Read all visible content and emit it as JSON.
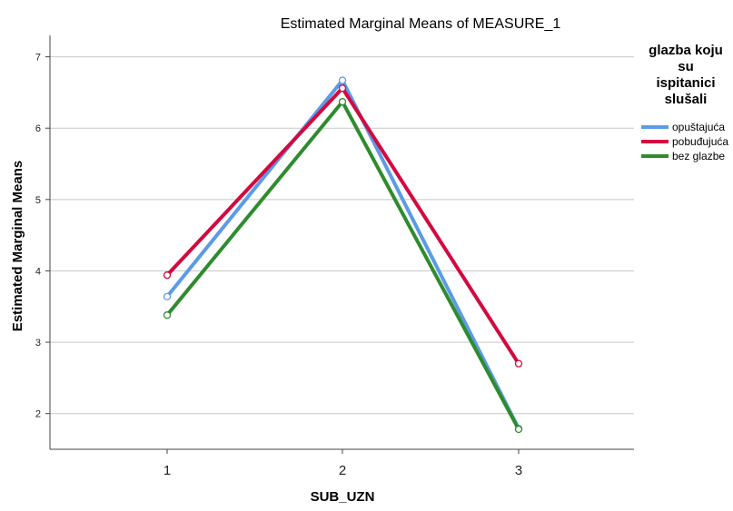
{
  "chart_data": {
    "type": "line",
    "title": "Estimated Marginal Means of MEASURE_1",
    "xlabel": "SUB_UZN",
    "ylabel": "Estimated Marginal Means",
    "categories": [
      "1",
      "2",
      "3"
    ],
    "y_ticks": [
      "2",
      "3",
      "4",
      "5",
      "6",
      "7"
    ],
    "ylim": [
      1.5,
      7.3
    ],
    "grid": "horizontal",
    "legend": {
      "title": [
        "glazba koju",
        "su",
        "ispitanici",
        "slušali"
      ],
      "placement": "right"
    },
    "series": [
      {
        "name": "opuštajuća",
        "color": "#5B9BE6",
        "values": [
          3.64,
          6.67,
          1.79
        ]
      },
      {
        "name": "pobuđujuća",
        "color": "#D3093F",
        "values": [
          3.94,
          6.56,
          2.7
        ]
      },
      {
        "name": "bez glazbe",
        "color": "#2E8B2E",
        "values": [
          3.38,
          6.37,
          1.78
        ]
      }
    ]
  }
}
